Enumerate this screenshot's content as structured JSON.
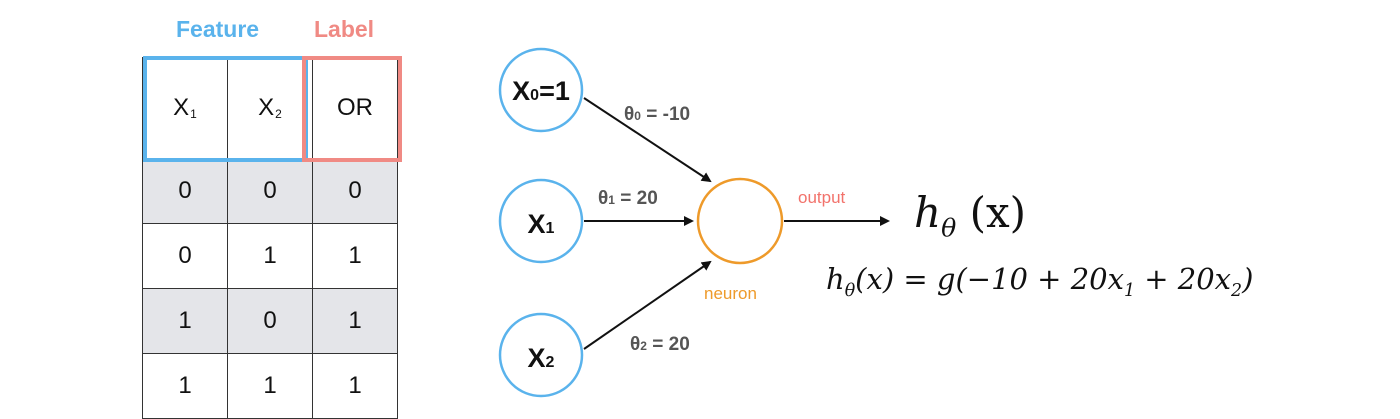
{
  "table": {
    "feature_header": "Feature",
    "label_header": "Label",
    "columns": [
      {
        "base": "X",
        "sub": "1"
      },
      {
        "base": "X",
        "sub": "2"
      },
      {
        "base": "OR",
        "sub": ""
      }
    ],
    "rows": [
      [
        "0",
        "0",
        "0"
      ],
      [
        "0",
        "1",
        "1"
      ],
      [
        "1",
        "0",
        "1"
      ],
      [
        "1",
        "1",
        "1"
      ]
    ]
  },
  "network": {
    "inputs": [
      {
        "base": "X",
        "sub": "0",
        "suffix": "=1"
      },
      {
        "base": "X",
        "sub": "1",
        "suffix": ""
      },
      {
        "base": "X",
        "sub": "2",
        "suffix": ""
      }
    ],
    "weights": [
      {
        "base": "θ",
        "sub": "0",
        "rest": " = -10"
      },
      {
        "base": "θ",
        "sub": "1",
        "rest": " = 20"
      },
      {
        "base": "θ",
        "sub": "2",
        "rest": " = 20"
      }
    ],
    "neuron_label": "neuron",
    "output_label": "output",
    "colors": {
      "input_circle": "#5ab3ec",
      "neuron_circle": "#ee9a2a",
      "output_label": "#f2726b",
      "feature_box": "#5ab3ec",
      "label_box": "#f08a84"
    }
  },
  "formulas": {
    "hypothesis": {
      "h": "h",
      "theta": "θ",
      "x": "(x)"
    },
    "equation": {
      "h": "h",
      "theta": "θ",
      "lhs_rest": "(x) = g(−10 + 20x",
      "sub1": "1",
      "mid": " + 20x",
      "sub2": "2",
      "end": ")"
    }
  }
}
